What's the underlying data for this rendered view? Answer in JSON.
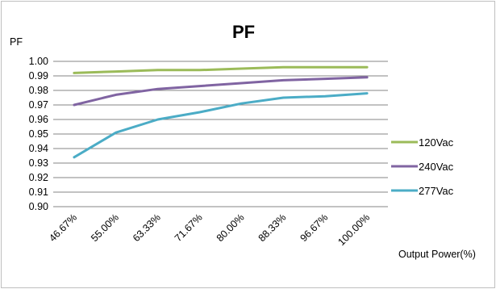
{
  "chart_data": {
    "type": "line",
    "title": "PF",
    "ylabel": "PF",
    "xlabel": "Output Power(%)",
    "ylim": [
      0.9,
      1.0
    ],
    "yticks": [
      "1.00",
      "0.99",
      "0.98",
      "0.97",
      "0.96",
      "0.95",
      "0.94",
      "0.93",
      "0.92",
      "0.91",
      "0.90"
    ],
    "categories": [
      "46.67%",
      "55.00%",
      "63.33%",
      "71.67%",
      "80.00%",
      "88.33%",
      "96.67%",
      "100.00%"
    ],
    "grid": true,
    "legend": "right",
    "series": [
      {
        "name": "120Vac",
        "color": "#9bbb59",
        "values": [
          0.992,
          0.993,
          0.994,
          0.994,
          0.995,
          0.996,
          0.996,
          0.996
        ]
      },
      {
        "name": "240Vac",
        "color": "#8064a2",
        "values": [
          0.97,
          0.977,
          0.981,
          0.983,
          0.985,
          0.987,
          0.988,
          0.989
        ]
      },
      {
        "name": "277Vac",
        "color": "#4bacc6",
        "values": [
          0.934,
          0.951,
          0.96,
          0.965,
          0.971,
          0.975,
          0.976,
          0.978
        ]
      }
    ]
  }
}
